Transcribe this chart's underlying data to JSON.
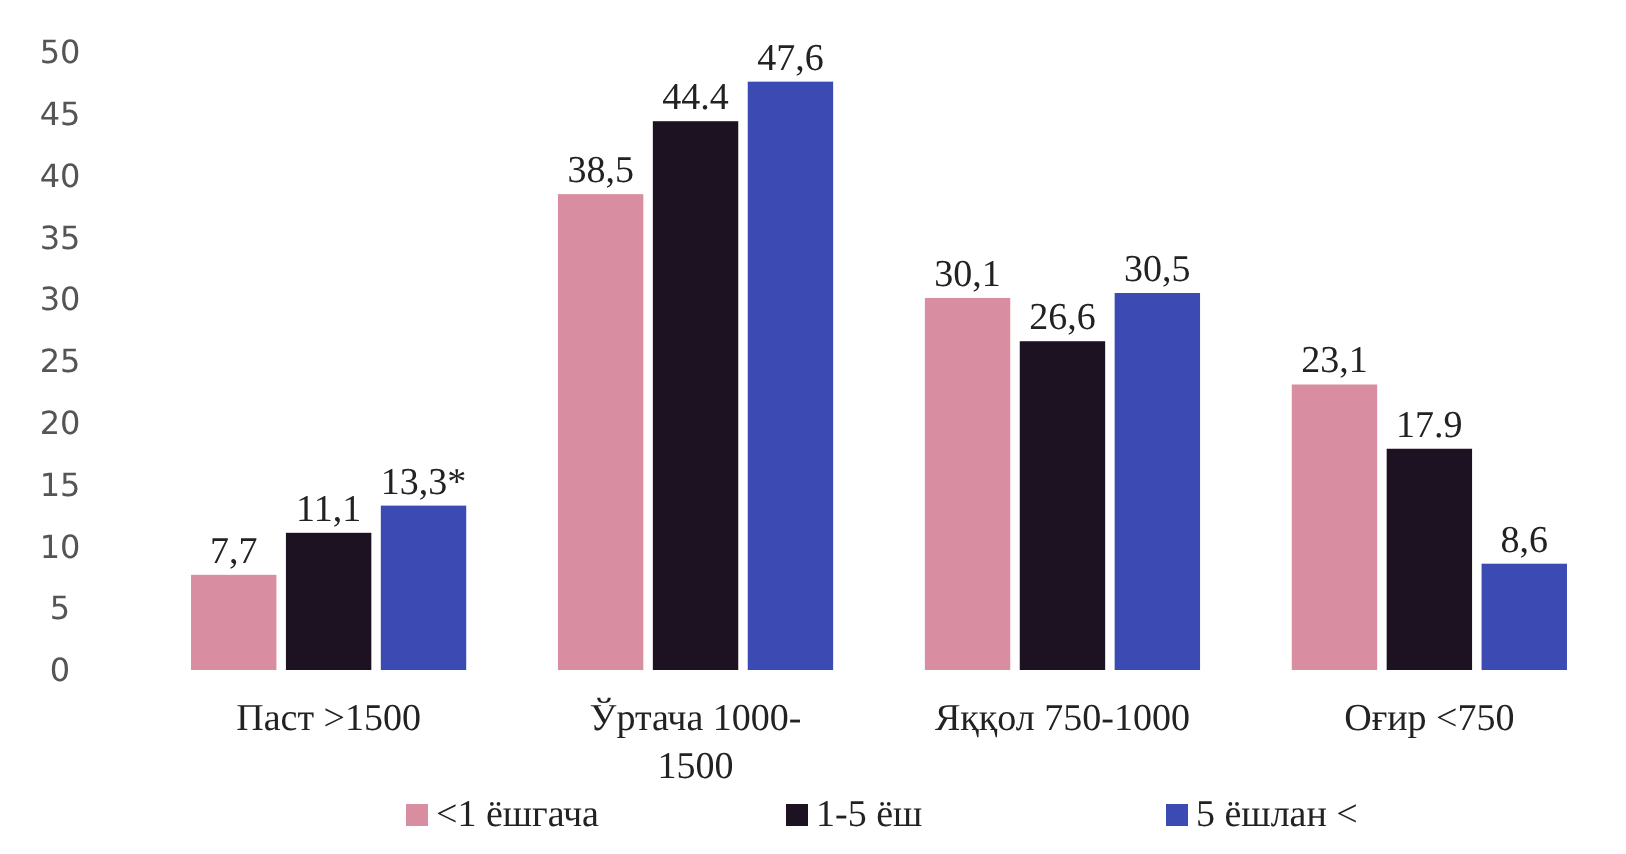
{
  "chart_data": {
    "type": "bar",
    "categories": [
      "Паст >1500",
      "Ўртача 1000-1500",
      "Яққол 750-1000",
      "Оғир <750"
    ],
    "ylim": [
      0,
      50
    ],
    "yticks": [
      0,
      5,
      10,
      15,
      20,
      25,
      30,
      35,
      40,
      45,
      50
    ],
    "grid": false,
    "legend": "bottom",
    "series": [
      {
        "name": "<1 ёшгача",
        "color": "#d98da0",
        "values": [
          7.7,
          38.5,
          30.1,
          23.1
        ],
        "value_labels": [
          "7,7",
          "38,5",
          "30,1",
          "23,1"
        ]
      },
      {
        "name": "1-5 ёш",
        "color": "#1c1222",
        "values": [
          11.1,
          44.4,
          26.6,
          17.9
        ],
        "value_labels": [
          "11,1",
          "44.4",
          "26,6",
          "17.9"
        ]
      },
      {
        "name": "5 ёшлан <",
        "color": "#3b4bb3",
        "values": [
          13.3,
          47.6,
          30.5,
          8.6
        ],
        "value_labels": [
          "13,3*",
          "47,6",
          "30,5",
          "8,6"
        ]
      }
    ]
  }
}
